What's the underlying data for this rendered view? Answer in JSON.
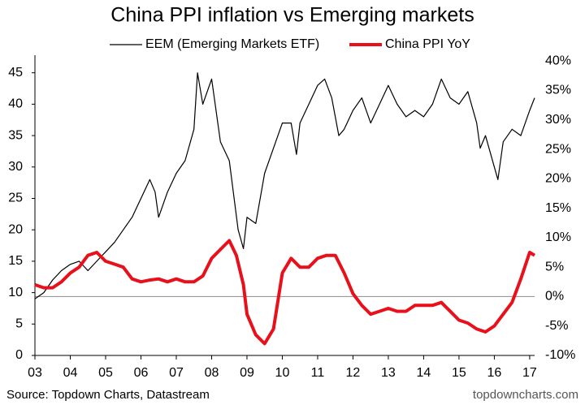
{
  "chart_data": {
    "type": "line",
    "title": "China PPI inflation vs Emerging markets",
    "source": "Source: Topdown Charts, Datastream",
    "watermark": "topdowncharts.com",
    "xlim": [
      3,
      17.14
    ],
    "xticks": [
      {
        "value": 3,
        "label": "03"
      },
      {
        "value": 4,
        "label": "04"
      },
      {
        "value": 5,
        "label": "05"
      },
      {
        "value": 6,
        "label": "06"
      },
      {
        "value": 7,
        "label": "07"
      },
      {
        "value": 8,
        "label": "08"
      },
      {
        "value": 9,
        "label": "09"
      },
      10,
      11,
      12,
      13,
      14,
      15,
      16,
      17
    ],
    "ylim": [
      0,
      47.8
    ],
    "yticks": [
      0,
      5,
      10,
      15,
      20,
      25,
      30,
      35,
      40,
      45
    ],
    "y2lim": [
      -10,
      41
    ],
    "y2ticks": [
      {
        "value": -10,
        "label": "-10%"
      },
      {
        "value": -5,
        "label": "-5%"
      },
      {
        "value": 0,
        "label": "0%"
      },
      {
        "value": 5,
        "label": "5%"
      },
      {
        "value": 10,
        "label": "10%"
      },
      {
        "value": 15,
        "label": "15%"
      },
      {
        "value": 20,
        "label": "20%"
      },
      {
        "value": 25,
        "label": "25%"
      },
      {
        "value": 30,
        "label": "30%"
      },
      {
        "value": 35,
        "label": "35%"
      },
      {
        "value": 40,
        "label": "40%"
      }
    ],
    "series": [
      {
        "name": "EEM (Emerging Markets ETF)",
        "color": "#000000",
        "width": 1.2,
        "x": [
          3.0,
          3.25,
          3.5,
          3.75,
          4.0,
          4.25,
          4.5,
          4.75,
          5.0,
          5.25,
          5.5,
          5.75,
          6.0,
          6.25,
          6.4,
          6.5,
          6.75,
          7.0,
          7.25,
          7.5,
          7.6,
          7.75,
          8.0,
          8.25,
          8.5,
          8.75,
          8.9,
          9.0,
          9.25,
          9.5,
          9.75,
          10.0,
          10.25,
          10.4,
          10.5,
          10.75,
          11.0,
          11.2,
          11.4,
          11.6,
          11.75,
          12.0,
          12.25,
          12.5,
          12.75,
          13.0,
          13.25,
          13.5,
          13.75,
          14.0,
          14.25,
          14.5,
          14.75,
          15.0,
          15.25,
          15.5,
          15.6,
          15.75,
          16.0,
          16.1,
          16.25,
          16.5,
          16.75,
          17.0,
          17.14
        ],
        "values": [
          9,
          10,
          12,
          13.5,
          14.5,
          15,
          13.5,
          15,
          16.5,
          18,
          20,
          22,
          25,
          28,
          26,
          22,
          26,
          29,
          31,
          36,
          45,
          40,
          44,
          34,
          31,
          20,
          17,
          22,
          21,
          29,
          33,
          37,
          37,
          32,
          37,
          40,
          43,
          44,
          41,
          35,
          36,
          39,
          41,
          37,
          40,
          43,
          40,
          38,
          39,
          38,
          40,
          44,
          41,
          40,
          42,
          37,
          33,
          35,
          30,
          28,
          34,
          36,
          35,
          39,
          41
        ]
      },
      {
        "name": "China PPI YoY",
        "color": "#e8111b",
        "width": 4,
        "axis": "y2",
        "x": [
          3.0,
          3.25,
          3.5,
          3.75,
          4.0,
          4.25,
          4.5,
          4.75,
          5.0,
          5.25,
          5.5,
          5.75,
          6.0,
          6.25,
          6.5,
          6.75,
          7.0,
          7.25,
          7.5,
          7.75,
          8.0,
          8.25,
          8.5,
          8.7,
          8.9,
          9.0,
          9.25,
          9.5,
          9.75,
          10.0,
          10.25,
          10.5,
          10.75,
          11.0,
          11.25,
          11.5,
          11.75,
          12.0,
          12.25,
          12.5,
          12.75,
          13.0,
          13.25,
          13.5,
          13.75,
          14.0,
          14.25,
          14.5,
          14.75,
          15.0,
          15.25,
          15.5,
          15.75,
          16.0,
          16.25,
          16.5,
          16.75,
          17.0,
          17.14
        ],
        "values": [
          2,
          1.5,
          1.5,
          2.5,
          4,
          5,
          7,
          7.5,
          6,
          5.5,
          5,
          3,
          2.5,
          2.8,
          3,
          2.5,
          3,
          2.5,
          2.5,
          3.5,
          6.5,
          8,
          9.5,
          7,
          2,
          -3,
          -6.5,
          -8,
          -5.5,
          4,
          6.5,
          5,
          5,
          6.5,
          7,
          7,
          4,
          0.5,
          -1.5,
          -3,
          -2.5,
          -2,
          -2.5,
          -2.5,
          -1.5,
          -1.5,
          -1.5,
          -1,
          -2.5,
          -4,
          -4.5,
          -5.5,
          -6,
          -5,
          -3,
          -1,
          3,
          7.5,
          7
        ]
      }
    ]
  }
}
